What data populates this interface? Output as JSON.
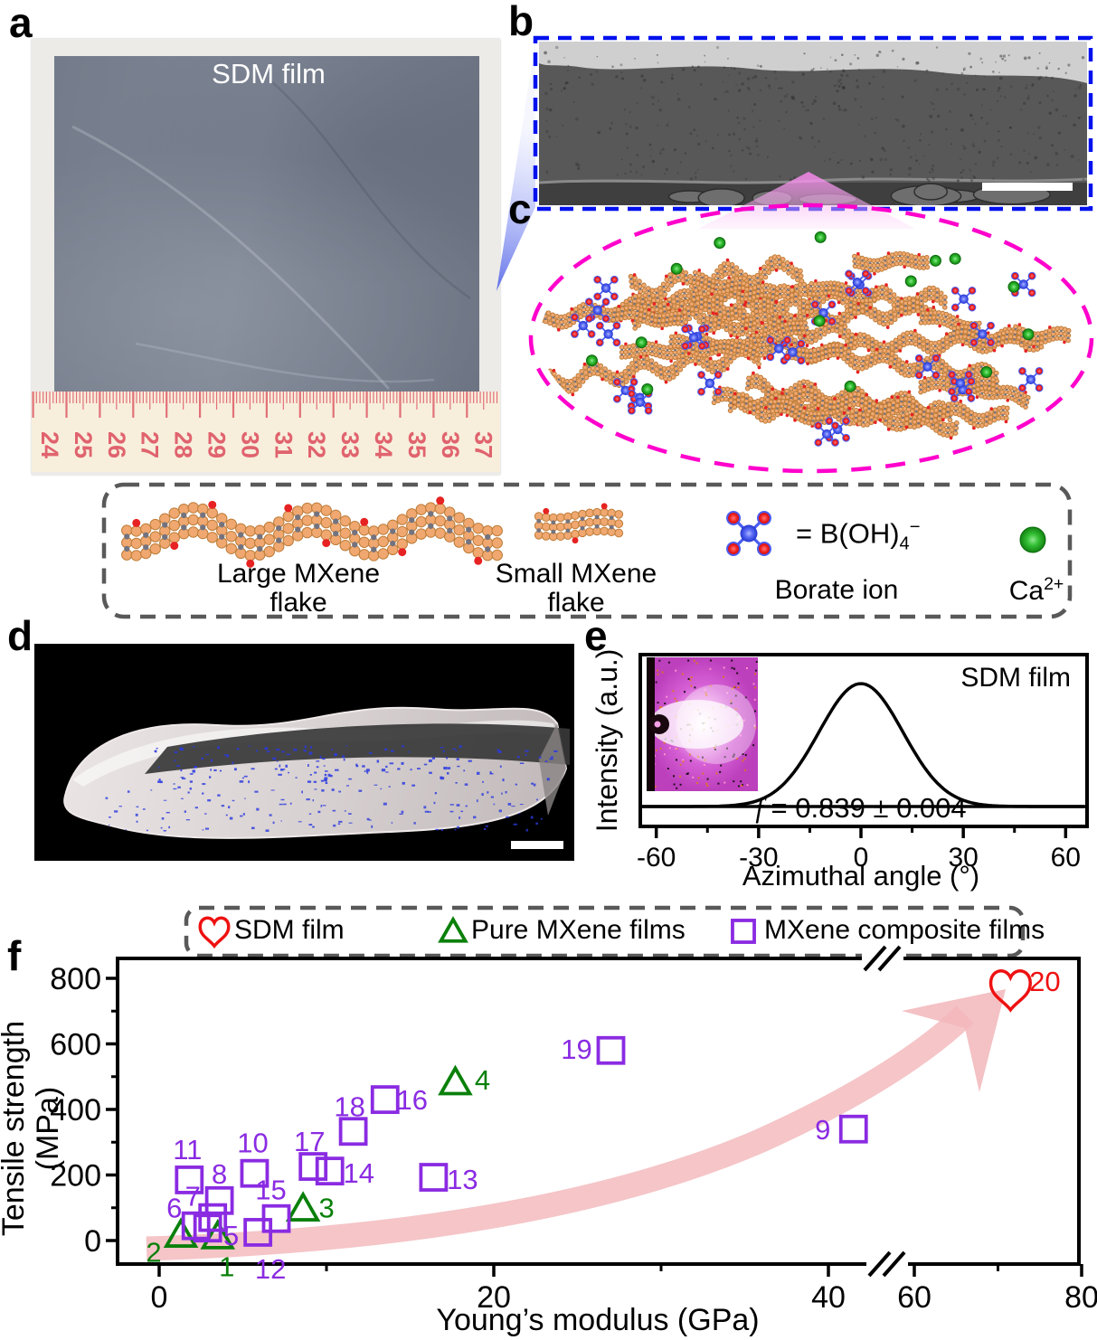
{
  "colors": {
    "purple": "#8a2be2",
    "green": "#0a800a",
    "red": "#ee1111",
    "blue_dash": "#0011ee",
    "magenta_dash": "#ff00cc",
    "gray_dash": "#595959",
    "arrow_pink": "#f2b6ba",
    "flake_fill": "#f0a870",
    "flake_stroke": "#bd7c38",
    "flake_inner": "#73737f",
    "borate_blue": "#4a5cf0",
    "dot_red": "#e62222",
    "ca_green": "#2db52d",
    "ruler_red": "#e0636e",
    "ruler_bg": "#f7efdc",
    "sem_body": "#585858",
    "sem_light": "#cfcfcf",
    "sem_dark": "#3f3f3f",
    "tomo_blue": "#2a3ae0"
  },
  "panels": {
    "a": {
      "letter": "a",
      "film_label": "SDM film",
      "ruler_numbers": [
        "24",
        "25",
        "26",
        "27",
        "28",
        "29",
        "30",
        "31",
        "32",
        "33",
        "34",
        "35",
        "36",
        "37"
      ]
    },
    "b": {
      "letter": "b",
      "description": "cross-section SEM of SDM film"
    },
    "c": {
      "letter": "c",
      "description": "schematic of bridged MXene flakes"
    },
    "d": {
      "letter": "d",
      "description": "3D tomography reconstruction"
    },
    "e": {
      "letter": "e",
      "title": "SDM film",
      "xlabel": "Azimuthal angle (°)",
      "ylabel": "Intensity (a.u.)",
      "annotation": {
        "var": "f",
        "rest": " = 0.839 ± 0.004"
      }
    },
    "f": {
      "letter": "f",
      "xlabel": "Young’s modulus (GPa)",
      "ylabel": "Tensile strength (MPa)",
      "legend": [
        {
          "label": "SDM film",
          "marker": "heart",
          "color": "#ee1111"
        },
        {
          "label": "Pure MXene films",
          "marker": "triangle",
          "color": "#0a800a"
        },
        {
          "label": "MXene composite films",
          "marker": "square",
          "color": "#8a2be2"
        }
      ]
    }
  },
  "legend_box": {
    "items": [
      {
        "name": "large-mxene-flake",
        "label_lines": [
          "Large MXene",
          "flake"
        ]
      },
      {
        "name": "small-mxene-flake",
        "label_lines": [
          "Small MXene",
          "flake"
        ]
      },
      {
        "name": "borate-ion",
        "formula": {
          "prefix": "= B(OH)",
          "sub": "4",
          "sup": "−"
        },
        "label": "Borate ion"
      },
      {
        "name": "calcium-ion",
        "label": {
          "base": "Ca",
          "sup": "2+"
        }
      }
    ]
  },
  "chart_data": [
    {
      "id": "azimuthal-intensity",
      "type": "line",
      "title": "SDM film",
      "xlabel": "Azimuthal angle (°)",
      "ylabel": "Intensity (a.u.)",
      "xlim": [
        -65,
        66
      ],
      "xticks": [
        -60,
        -30,
        0,
        30,
        60
      ],
      "minor_xticks": [
        -45,
        -15,
        15,
        45
      ],
      "curve": {
        "shape": "gaussian",
        "center_deg": 0,
        "sigma_deg": 12.3,
        "peak_rel_height": 1.0,
        "baseline": "flat tails"
      },
      "annotation": "f = 0.839 ± 0.004",
      "inset": "2D WAXS pattern"
    },
    {
      "id": "mechanical-properties",
      "type": "scatter",
      "xlabel": "Young’s modulus (GPa)",
      "ylabel": "Tensile strength (MPa)",
      "xticks": [
        0,
        20,
        40,
        60,
        80
      ],
      "minor_xticks": [
        10,
        30,
        70
      ],
      "yticks": [
        0,
        200,
        400,
        600,
        800
      ],
      "minor_yticks": [
        100,
        300,
        500,
        700
      ],
      "xlim": [
        -2.5,
        82
      ],
      "ylim": [
        -60,
        870
      ],
      "axis_break_x": [
        44,
        57
      ],
      "trend_arrow": "pink curved arrow rising toward point 20",
      "series": [
        {
          "name": "SDM film",
          "marker": "heart",
          "color": "#ee1111",
          "points": [
            {
              "n": 20,
              "x": 71.5,
              "y": 770,
              "lx": 38,
              "ly": -8
            }
          ]
        },
        {
          "name": "Pure MXene films",
          "marker": "triangle",
          "color": "#0a800a",
          "points": [
            {
              "n": 1,
              "x": 3.5,
              "y": 10,
              "lx": 10,
              "ly": 32
            },
            {
              "n": 2,
              "x": 1.3,
              "y": 15,
              "lx": -30,
              "ly": 18
            },
            {
              "n": 3,
              "x": 8.6,
              "y": 95,
              "lx": 26,
              "ly": -2
            },
            {
              "n": 4,
              "x": 17.7,
              "y": 480,
              "lx": 30,
              "ly": -4
            }
          ]
        },
        {
          "name": "MXene composite films",
          "marker": "square",
          "color": "#8a2be2",
          "points": [
            {
              "n": 5,
              "x": 2.9,
              "y": 38,
              "lx": 26,
              "ly": 8
            },
            {
              "n": 6,
              "x": 2.2,
              "y": 45,
              "lx": -24,
              "ly": -20
            },
            {
              "n": 7,
              "x": 3.2,
              "y": 70,
              "lx": -22,
              "ly": -24
            },
            {
              "n": 8,
              "x": 3.6,
              "y": 122,
              "lx": 0,
              "ly": -30
            },
            {
              "n": 9,
              "x": 41.5,
              "y": 340,
              "lx": -34,
              "ly": 0
            },
            {
              "n": 10,
              "x": 5.7,
              "y": 205,
              "lx": -2,
              "ly": -34
            },
            {
              "n": 11,
              "x": 1.8,
              "y": 185,
              "lx": -2,
              "ly": -34
            },
            {
              "n": 12,
              "x": 5.9,
              "y": 25,
              "lx": 14,
              "ly": 40
            },
            {
              "n": 13,
              "x": 16.4,
              "y": 193,
              "lx": 32,
              "ly": 2
            },
            {
              "n": 14,
              "x": 10.2,
              "y": 212,
              "lx": 32,
              "ly": 2
            },
            {
              "n": 15,
              "x": 7.0,
              "y": 67,
              "lx": -6,
              "ly": -32
            },
            {
              "n": 16,
              "x": 13.5,
              "y": 430,
              "lx": 30,
              "ly": 0
            },
            {
              "n": 17,
              "x": 9.2,
              "y": 226,
              "lx": -4,
              "ly": -28
            },
            {
              "n": 18,
              "x": 11.6,
              "y": 333,
              "lx": -4,
              "ly": -28
            },
            {
              "n": 19,
              "x": 27,
              "y": 580,
              "lx": -38,
              "ly": -2
            }
          ]
        }
      ]
    }
  ]
}
